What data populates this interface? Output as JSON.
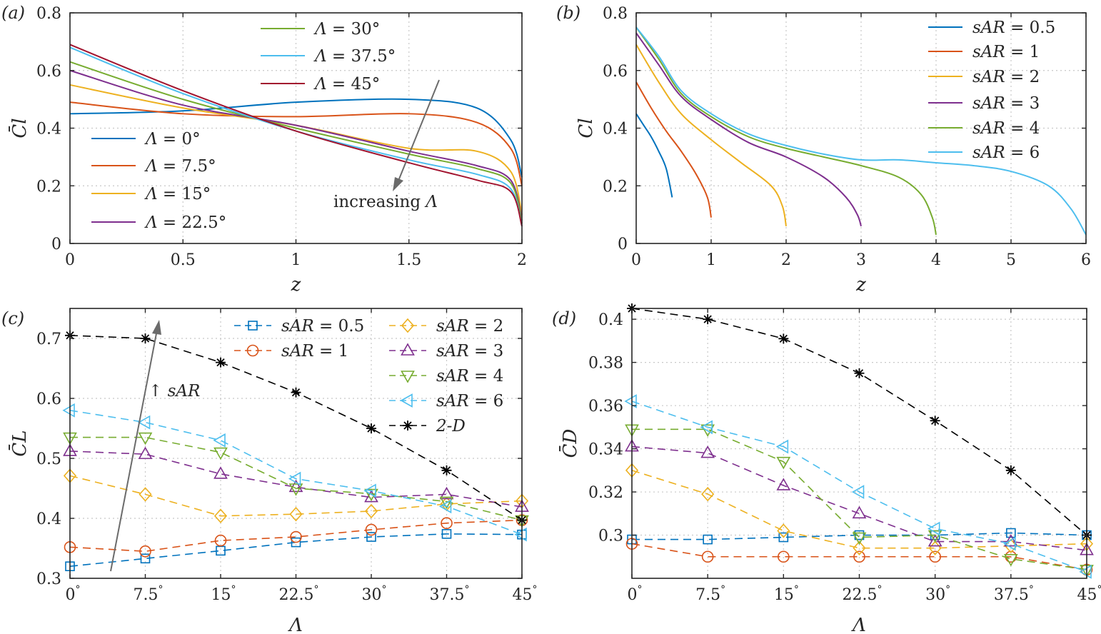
{
  "chart_data": [
    {
      "panel": "(a)",
      "type": "line",
      "xlabel": "z",
      "ylabel": "C̄l",
      "xlim": [
        0,
        2
      ],
      "ylim": [
        0,
        0.8
      ],
      "xticks": [
        0,
        0.5,
        1,
        1.5,
        2
      ],
      "xtick_labels": [
        "0",
        "0.5",
        "1",
        "1.5",
        "2"
      ],
      "yticks": [
        0,
        0.2,
        0.4,
        0.6,
        0.8
      ],
      "ytick_labels": [
        "0",
        "0.2",
        "0.4",
        "0.6",
        "0.8"
      ],
      "grid": true,
      "annotation": "increasing Λ",
      "series": [
        {
          "name": "Λ = 0°",
          "color": "#0072BD",
          "x": [
            0,
            0.5,
            1.0,
            1.5,
            1.8,
            1.95,
            2.0
          ],
          "y": [
            0.45,
            0.46,
            0.49,
            0.5,
            0.47,
            0.36,
            0.23
          ]
        },
        {
          "name": "Λ = 7.5°",
          "color": "#D95319",
          "x": [
            0,
            0.5,
            1.0,
            1.5,
            1.8,
            1.95,
            2.0
          ],
          "y": [
            0.49,
            0.45,
            0.44,
            0.45,
            0.42,
            0.33,
            0.2
          ]
        },
        {
          "name": "Λ = 15°",
          "color": "#EDB120",
          "x": [
            0,
            0.5,
            1.0,
            1.5,
            1.8,
            1.95,
            2.0
          ],
          "y": [
            0.55,
            0.47,
            0.41,
            0.33,
            0.32,
            0.25,
            0.1
          ]
        },
        {
          "name": "Λ = 22.5°",
          "color": "#7E2F8E",
          "x": [
            0,
            0.5,
            1.0,
            1.5,
            1.8,
            1.95,
            2.0
          ],
          "y": [
            0.6,
            0.48,
            0.41,
            0.32,
            0.27,
            0.22,
            0.08
          ]
        },
        {
          "name": "Λ = 30°",
          "color": "#77AC30",
          "x": [
            0,
            0.5,
            1.0,
            1.5,
            1.8,
            1.95,
            2.0
          ],
          "y": [
            0.63,
            0.5,
            0.4,
            0.31,
            0.26,
            0.21,
            0.07
          ]
        },
        {
          "name": "Λ = 37.5°",
          "color": "#4DBEEE",
          "x": [
            0,
            0.5,
            1.0,
            1.5,
            1.8,
            1.95,
            2.0
          ],
          "y": [
            0.68,
            0.52,
            0.39,
            0.29,
            0.24,
            0.19,
            0.06
          ]
        },
        {
          "name": "Λ = 45°",
          "color": "#A2142F",
          "x": [
            0,
            0.5,
            1.0,
            1.5,
            1.8,
            1.95,
            2.0
          ],
          "y": [
            0.69,
            0.53,
            0.39,
            0.28,
            0.22,
            0.18,
            0.06
          ]
        }
      ]
    },
    {
      "panel": "(b)",
      "type": "line",
      "xlabel": "z",
      "ylabel": "Cl",
      "xlim": [
        0,
        6
      ],
      "ylim": [
        0,
        0.8
      ],
      "xticks": [
        0,
        1,
        2,
        3,
        4,
        5,
        6
      ],
      "xtick_labels": [
        "0",
        "1",
        "2",
        "3",
        "4",
        "5",
        "6"
      ],
      "yticks": [
        0,
        0.2,
        0.4,
        0.6,
        0.8
      ],
      "ytick_labels": [
        "0",
        "0.2",
        "0.4",
        "0.6",
        "0.8"
      ],
      "grid": true,
      "series": [
        {
          "name": "sAR = 0.5",
          "color": "#0072BD",
          "x": [
            0,
            0.1,
            0.2,
            0.3,
            0.4,
            0.48
          ],
          "y": [
            0.45,
            0.41,
            0.37,
            0.32,
            0.26,
            0.16
          ]
        },
        {
          "name": "sAR = 1",
          "color": "#D95319",
          "x": [
            0,
            0.2,
            0.4,
            0.6,
            0.8,
            0.95,
            1.0
          ],
          "y": [
            0.56,
            0.47,
            0.39,
            0.32,
            0.24,
            0.16,
            0.09
          ]
        },
        {
          "name": "sAR = 2",
          "color": "#EDB120",
          "x": [
            0,
            0.3,
            0.6,
            1.0,
            1.4,
            1.8,
            1.95,
            2.0
          ],
          "y": [
            0.69,
            0.56,
            0.45,
            0.36,
            0.28,
            0.2,
            0.13,
            0.06
          ]
        },
        {
          "name": "sAR = 3",
          "color": "#7E2F8E",
          "x": [
            0,
            0.3,
            0.6,
            1.0,
            1.5,
            2.0,
            2.5,
            2.8,
            2.95,
            3.0
          ],
          "y": [
            0.73,
            0.62,
            0.51,
            0.43,
            0.35,
            0.3,
            0.23,
            0.16,
            0.1,
            0.06
          ]
        },
        {
          "name": "sAR = 4",
          "color": "#77AC30",
          "x": [
            0,
            0.3,
            0.6,
            1.0,
            1.5,
            2.0,
            2.5,
            3.0,
            3.5,
            3.8,
            3.95,
            4.0
          ],
          "y": [
            0.75,
            0.64,
            0.52,
            0.44,
            0.37,
            0.33,
            0.3,
            0.27,
            0.23,
            0.17,
            0.09,
            0.03
          ]
        },
        {
          "name": "sAR = 6",
          "color": "#4DBEEE",
          "x": [
            0,
            0.3,
            0.6,
            1.0,
            1.5,
            2.0,
            2.5,
            3.0,
            3.5,
            4.0,
            4.5,
            5.0,
            5.5,
            5.8,
            6.0
          ],
          "y": [
            0.75,
            0.65,
            0.53,
            0.45,
            0.38,
            0.34,
            0.31,
            0.29,
            0.29,
            0.28,
            0.27,
            0.25,
            0.2,
            0.12,
            0.03
          ]
        }
      ]
    },
    {
      "panel": "(c)",
      "type": "line",
      "xlabel": "Λ",
      "ylabel": "C̄L",
      "categories": [
        "0°",
        "7.5°",
        "15°",
        "22.5°",
        "30°",
        "37.5°",
        "45°"
      ],
      "x": [
        0,
        7.5,
        15,
        22.5,
        30,
        37.5,
        45
      ],
      "xlim": [
        0,
        45
      ],
      "ylim": [
        0.3,
        0.75
      ],
      "yticks": [
        0.3,
        0.4,
        0.5,
        0.6,
        0.7
      ],
      "ytick_labels": [
        "0.3",
        "0.4",
        "0.5",
        "0.6",
        "0.7"
      ],
      "grid": true,
      "annotation": "↑ sAR",
      "series": [
        {
          "name": "sAR = 0.5",
          "color": "#0072BD",
          "marker": "square",
          "values": [
            0.32,
            0.333,
            0.346,
            0.36,
            0.369,
            0.374,
            0.373
          ]
        },
        {
          "name": "sAR = 1",
          "color": "#D95319",
          "marker": "circle",
          "values": [
            0.352,
            0.345,
            0.363,
            0.369,
            0.381,
            0.392,
            0.397
          ]
        },
        {
          "name": "sAR = 2",
          "color": "#EDB120",
          "marker": "diamond",
          "values": [
            0.471,
            0.44,
            0.404,
            0.407,
            0.412,
            0.424,
            0.429
          ]
        },
        {
          "name": "sAR = 3",
          "color": "#7E2F8E",
          "marker": "triangle-up",
          "values": [
            0.512,
            0.507,
            0.474,
            0.452,
            0.435,
            0.44,
            0.419
          ]
        },
        {
          "name": "sAR = 4",
          "color": "#77AC30",
          "marker": "triangle-down",
          "values": [
            0.535,
            0.535,
            0.51,
            0.45,
            0.441,
            0.428,
            0.397
          ]
        },
        {
          "name": "sAR = 6",
          "color": "#4DBEEE",
          "marker": "triangle-left",
          "values": [
            0.58,
            0.56,
            0.53,
            0.466,
            0.446,
            0.42,
            0.373
          ]
        },
        {
          "name": "2-D",
          "color": "#000000",
          "marker": "asterisk",
          "values": [
            0.705,
            0.7,
            0.66,
            0.61,
            0.55,
            0.48,
            0.397
          ]
        }
      ]
    },
    {
      "panel": "(d)",
      "type": "line",
      "xlabel": "Λ",
      "ylabel": "C̄D",
      "categories": [
        "0°",
        "7.5°",
        "15°",
        "22.5°",
        "30°",
        "37.5°",
        "45°"
      ],
      "x": [
        0,
        7.5,
        15,
        22.5,
        30,
        37.5,
        45
      ],
      "xlim": [
        0,
        45
      ],
      "ylim": [
        0.28,
        0.405
      ],
      "yticks": [
        0.3,
        0.32,
        0.34,
        0.36,
        0.38,
        0.4
      ],
      "ytick_labels": [
        "0.3",
        "0.32",
        "0.34",
        "0.36",
        "0.38",
        "0.4"
      ],
      "grid": true,
      "series": [
        {
          "name": "sAR = 0.5",
          "color": "#0072BD",
          "marker": "square",
          "values": [
            0.298,
            0.298,
            0.299,
            0.3,
            0.3,
            0.301,
            0.3
          ]
        },
        {
          "name": "sAR = 1",
          "color": "#D95319",
          "marker": "circle",
          "values": [
            0.296,
            0.29,
            0.29,
            0.29,
            0.29,
            0.29,
            0.284
          ]
        },
        {
          "name": "sAR = 2",
          "color": "#EDB120",
          "marker": "diamond",
          "values": [
            0.33,
            0.319,
            0.302,
            0.294,
            0.294,
            0.295,
            0.296
          ]
        },
        {
          "name": "sAR = 3",
          "color": "#7E2F8E",
          "marker": "triangle-up",
          "values": [
            0.341,
            0.338,
            0.323,
            0.31,
            0.297,
            0.297,
            0.293
          ]
        },
        {
          "name": "sAR = 4",
          "color": "#77AC30",
          "marker": "triangle-down",
          "values": [
            0.349,
            0.349,
            0.334,
            0.299,
            0.3,
            0.289,
            0.284
          ]
        },
        {
          "name": "sAR = 6",
          "color": "#4DBEEE",
          "marker": "triangle-left",
          "values": [
            0.362,
            0.35,
            0.341,
            0.32,
            0.303,
            0.296,
            0.283
          ]
        },
        {
          "name": "2-D",
          "color": "#000000",
          "marker": "asterisk",
          "values": [
            0.405,
            0.4,
            0.391,
            0.375,
            0.353,
            0.33,
            0.3
          ]
        }
      ]
    }
  ]
}
